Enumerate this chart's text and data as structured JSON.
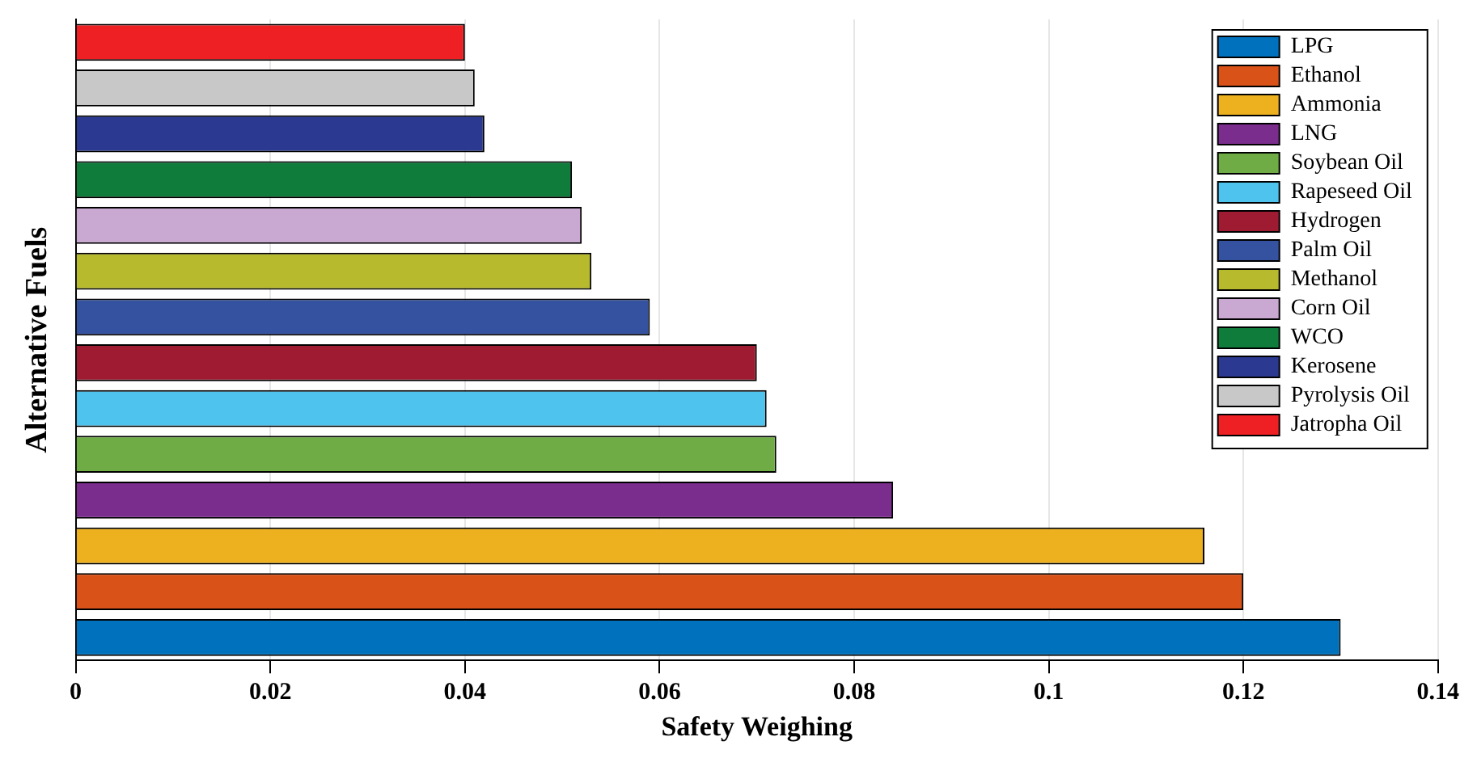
{
  "chart_data": {
    "type": "bar",
    "orientation": "horizontal",
    "xlabel": "Safety Weighing",
    "ylabel": "Alternative Fuels",
    "categories": [
      null,
      null,
      null,
      null,
      null,
      null,
      null,
      null,
      null,
      null,
      null,
      null,
      null,
      null
    ],
    "series": [
      {
        "name": "LPG",
        "color": "#0072bd",
        "values": [
          null,
          null,
          null,
          null,
          null,
          null,
          null,
          null,
          null,
          null,
          null,
          null,
          null,
          0.13
        ]
      },
      {
        "name": "Ethanol",
        "color": "#d95319",
        "values": [
          null,
          null,
          null,
          null,
          null,
          null,
          null,
          null,
          null,
          null,
          null,
          null,
          0.12,
          null
        ]
      },
      {
        "name": "Ammonia",
        "color": "#edb120",
        "values": [
          null,
          null,
          null,
          null,
          null,
          null,
          null,
          null,
          null,
          null,
          null,
          0.116,
          null,
          null
        ]
      },
      {
        "name": "LNG",
        "color": "#7b2d8e",
        "values": [
          null,
          null,
          null,
          null,
          null,
          null,
          null,
          null,
          null,
          null,
          0.084,
          null,
          null,
          null
        ]
      },
      {
        "name": "Soybean Oil",
        "color": "#6fac46",
        "values": [
          null,
          null,
          null,
          null,
          null,
          null,
          null,
          null,
          null,
          0.072,
          null,
          null,
          null,
          null
        ]
      },
      {
        "name": "Rapeseed Oil",
        "color": "#4dc3ee",
        "values": [
          null,
          null,
          null,
          null,
          null,
          null,
          null,
          null,
          0.071,
          null,
          null,
          null,
          null,
          null
        ]
      },
      {
        "name": "Hydrogen",
        "color": "#9e1b32",
        "values": [
          null,
          null,
          null,
          null,
          null,
          null,
          null,
          0.07,
          null,
          null,
          null,
          null,
          null,
          null
        ]
      },
      {
        "name": "Palm Oil",
        "color": "#3552a0",
        "values": [
          null,
          null,
          null,
          null,
          null,
          null,
          0.059,
          null,
          null,
          null,
          null,
          null,
          null,
          null
        ]
      },
      {
        "name": "Methanol",
        "color": "#b8ba2e",
        "values": [
          null,
          null,
          null,
          null,
          null,
          0.053,
          null,
          null,
          null,
          null,
          null,
          null,
          null,
          null
        ]
      },
      {
        "name": "Corn Oil",
        "color": "#c9a8d2",
        "values": [
          null,
          null,
          null,
          null,
          0.052,
          null,
          null,
          null,
          null,
          null,
          null,
          null,
          null,
          null
        ]
      },
      {
        "name": "WCO",
        "color": "#0f7c3c",
        "values": [
          null,
          null,
          null,
          0.051,
          null,
          null,
          null,
          null,
          null,
          null,
          null,
          null,
          null,
          null
        ]
      },
      {
        "name": "Kerosene",
        "color": "#2b3990",
        "values": [
          null,
          null,
          0.042,
          null,
          null,
          null,
          null,
          null,
          null,
          null,
          null,
          null,
          null,
          null
        ]
      },
      {
        "name": "Pyrolysis Oil",
        "color": "#c8c8c8",
        "values": [
          null,
          0.041,
          null,
          null,
          null,
          null,
          null,
          null,
          null,
          null,
          null,
          null,
          null,
          null
        ]
      },
      {
        "name": "Jatropha Oil",
        "color": "#ee2024",
        "values": [
          0.04,
          null,
          null,
          null,
          null,
          null,
          null,
          null,
          null,
          null,
          null,
          null,
          null,
          null
        ]
      }
    ],
    "xlim": [
      0,
      0.14
    ],
    "xticks": [
      0,
      0.02,
      0.04,
      0.06,
      0.08,
      0.1,
      0.12,
      0.14
    ],
    "grid": "x",
    "legend": "top right",
    "tick_labels": "x"
  }
}
